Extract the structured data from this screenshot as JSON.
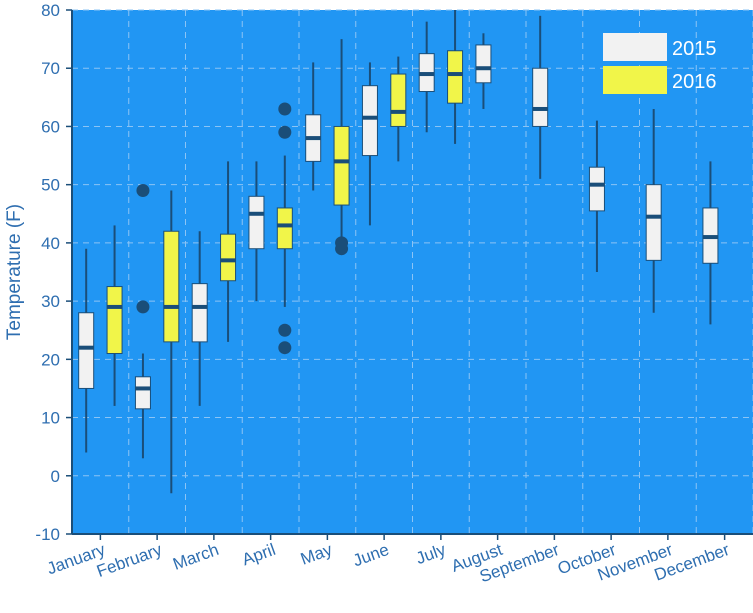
{
  "chart_data": {
    "type": "box",
    "title": "",
    "xlabel": "",
    "ylabel": "Temperature (F)",
    "ylim": [
      -10,
      80
    ],
    "yticks": [
      -10,
      0,
      10,
      20,
      30,
      40,
      50,
      60,
      70,
      80
    ],
    "grid": true,
    "legend_position": "top-right",
    "categories": [
      "January",
      "February",
      "March",
      "April",
      "May",
      "June",
      "July",
      "August",
      "September",
      "October",
      "November",
      "December"
    ],
    "series": [
      {
        "name": "2015",
        "boxes": [
          {
            "category": "January",
            "min": 4,
            "q1": 15,
            "median": 22,
            "q3": 28,
            "max": 39,
            "outliers": []
          },
          {
            "category": "February",
            "min": 3,
            "q1": 11.5,
            "median": 15,
            "q3": 17,
            "max": 21,
            "outliers": [
              29,
              49
            ]
          },
          {
            "category": "March",
            "min": 12,
            "q1": 23,
            "median": 29,
            "q3": 33,
            "max": 42,
            "outliers": []
          },
          {
            "category": "April",
            "min": 30,
            "q1": 39,
            "median": 45,
            "q3": 48,
            "max": 54,
            "outliers": []
          },
          {
            "category": "May",
            "min": 49,
            "q1": 54,
            "median": 58,
            "q3": 62,
            "max": 71,
            "outliers": []
          },
          {
            "category": "June",
            "min": 43,
            "q1": 55,
            "median": 61.5,
            "q3": 67,
            "max": 71,
            "outliers": []
          },
          {
            "category": "July",
            "min": 59,
            "q1": 66,
            "median": 69,
            "q3": 72.5,
            "max": 78,
            "outliers": []
          },
          {
            "category": "August",
            "min": 63,
            "q1": 67.5,
            "median": 70,
            "q3": 74,
            "max": 76,
            "outliers": []
          },
          {
            "category": "September",
            "min": 51,
            "q1": 60,
            "median": 63,
            "q3": 70,
            "max": 79,
            "outliers": []
          },
          {
            "category": "October",
            "min": 35,
            "q1": 45.5,
            "median": 50,
            "q3": 53,
            "max": 61,
            "outliers": []
          },
          {
            "category": "November",
            "min": 28,
            "q1": 37,
            "median": 44.5,
            "q3": 50,
            "max": 63,
            "outliers": []
          },
          {
            "category": "December",
            "min": 26,
            "q1": 36.5,
            "median": 41,
            "q3": 46,
            "max": 54,
            "outliers": []
          }
        ]
      },
      {
        "name": "2016",
        "boxes": [
          {
            "category": "January",
            "min": 12,
            "q1": 21,
            "median": 29,
            "q3": 32.5,
            "max": 43,
            "outliers": []
          },
          {
            "category": "February",
            "min": -3,
            "q1": 23,
            "median": 29,
            "q3": 42,
            "max": 49,
            "outliers": []
          },
          {
            "category": "March",
            "min": 23,
            "q1": 33.5,
            "median": 37,
            "q3": 41.5,
            "max": 54,
            "outliers": []
          },
          {
            "category": "April",
            "min": 29,
            "q1": 39,
            "median": 43,
            "q3": 46,
            "max": 55,
            "outliers": [
              22,
              25,
              59,
              63
            ]
          },
          {
            "category": "May",
            "min": 41,
            "q1": 46.5,
            "median": 54,
            "q3": 60,
            "max": 75,
            "outliers": [
              39,
              40
            ]
          },
          {
            "category": "June",
            "min": 54,
            "q1": 60,
            "median": 62.5,
            "q3": 69,
            "max": 72,
            "outliers": []
          },
          {
            "category": "July",
            "min": 57,
            "q1": 64,
            "median": 69,
            "q3": 73,
            "max": 80,
            "outliers": []
          }
        ]
      }
    ],
    "colors": {
      "background": "#2196F3",
      "box_2015": "#F2F2F2",
      "box_2016": "#F1F549",
      "line": "#1A4E79",
      "axis": "#1A4E79",
      "tick_text": "#2E6EB0",
      "grid": "#8CC4F5",
      "legend_text": "#ffffff"
    }
  }
}
